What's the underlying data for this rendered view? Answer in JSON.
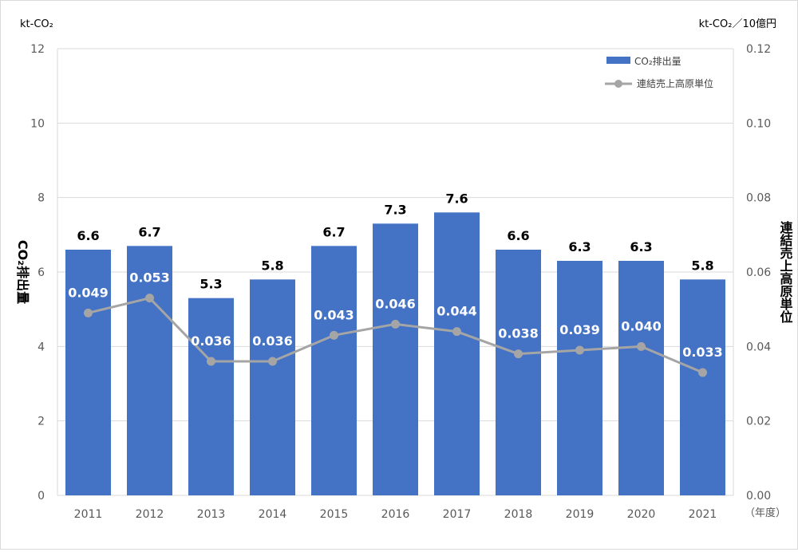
{
  "chart_data": {
    "type": "bar",
    "categories": [
      "2011",
      "2012",
      "2013",
      "2014",
      "2015",
      "2016",
      "2017",
      "2018",
      "2019",
      "2020",
      "2021"
    ],
    "series": [
      {
        "name": "CO₂排出量",
        "kind": "bar",
        "axis": "left",
        "color": "#4472c4",
        "values": [
          6.6,
          6.7,
          5.3,
          5.8,
          6.7,
          7.3,
          7.6,
          6.6,
          6.3,
          6.3,
          5.8
        ],
        "labels": [
          "6.6",
          "6.7",
          "5.3",
          "5.8",
          "6.7",
          "7.3",
          "7.6",
          "6.6",
          "6.3",
          "6.3",
          "5.8"
        ]
      },
      {
        "name": "連結売上高原単位",
        "kind": "line",
        "axis": "right",
        "color": "#a5a5a5",
        "values": [
          0.049,
          0.053,
          0.036,
          0.036,
          0.043,
          0.046,
          0.044,
          0.038,
          0.039,
          0.04,
          0.033
        ],
        "labels": [
          "0.049",
          "0.053",
          "0.036",
          "0.036",
          "0.043",
          "0.046",
          "0.044",
          "0.038",
          "0.039",
          "0.040",
          "0.033"
        ]
      }
    ],
    "y_left": {
      "unit": "kt-CO₂",
      "label": "CO₂排出量",
      "range": [
        0,
        12
      ],
      "ticks": [
        "0",
        "2",
        "4",
        "6",
        "8",
        "10",
        "12"
      ]
    },
    "y_right": {
      "unit": "kt-CO₂／10億円",
      "label": "連結売上高原単位",
      "range": [
        0,
        0.12
      ],
      "ticks": [
        "0.00",
        "0.02",
        "0.04",
        "0.06",
        "0.08",
        "0.10",
        "0.12"
      ]
    },
    "x_unit": "（年度）",
    "grid": true,
    "legend_position": "top-right"
  }
}
